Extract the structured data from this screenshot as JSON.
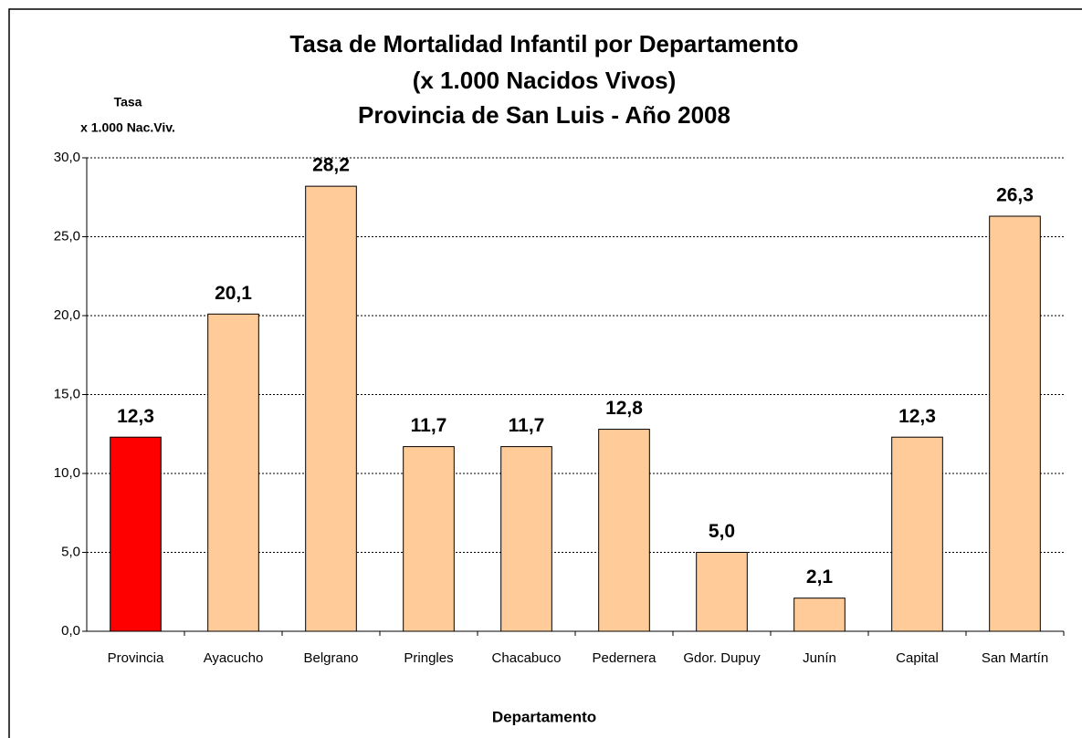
{
  "chart_data": {
    "type": "bar",
    "title": [
      "Tasa de Mortalidad Infantil por Departamento",
      "(x 1.000 Nacidos Vivos)",
      "Provincia de San Luis - Año 2008"
    ],
    "ylabel": [
      "Tasa",
      "x 1.000 Nac.Viv."
    ],
    "xlabel": "Departamento",
    "categories": [
      "Provincia",
      "Ayacucho",
      "Belgrano",
      "Pringles",
      "Chacabuco",
      "Pedernera",
      "Gdor. Dupuy",
      "Junín",
      "Capital",
      "San Martín"
    ],
    "values": [
      12.3,
      20.1,
      28.2,
      11.7,
      11.7,
      12.8,
      5.0,
      2.1,
      12.3,
      26.3
    ],
    "value_labels": [
      "12,3",
      "20,1",
      "28,2",
      "11,7",
      "11,7",
      "12,8",
      "5,0",
      "2,1",
      "12,3",
      "26,3"
    ],
    "colors": [
      "#ff0000",
      "#ffcc99",
      "#ffcc99",
      "#ffcc99",
      "#ffcc99",
      "#ffcc99",
      "#ffcc99",
      "#ffcc99",
      "#ffcc99",
      "#ffcc99"
    ],
    "ylim": [
      0,
      30
    ],
    "yticks": [
      {
        "value": 0,
        "label": "0,0"
      },
      {
        "value": 5,
        "label": "5,0"
      },
      {
        "value": 10,
        "label": "10,0"
      },
      {
        "value": 15,
        "label": "15,0"
      },
      {
        "value": 20,
        "label": "20,0"
      },
      {
        "value": 25,
        "label": "25,0"
      },
      {
        "value": 30,
        "label": "30,0"
      }
    ],
    "grid": true
  }
}
